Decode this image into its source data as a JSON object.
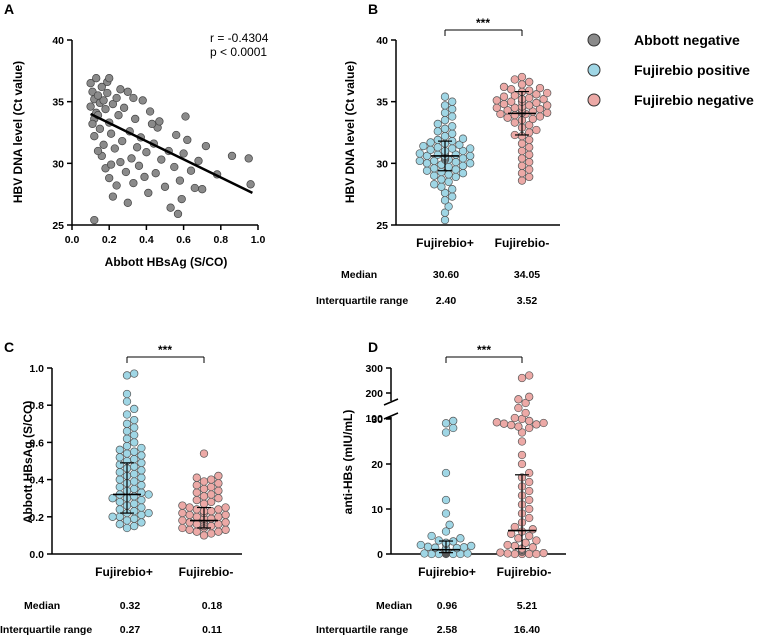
{
  "legend": {
    "items": [
      {
        "label": "Abbott negative",
        "color": "#8a8a8a"
      },
      {
        "label": "Fujirebio positive",
        "color": "#9fd6e5"
      },
      {
        "label": "Fujirebio negative",
        "color": "#eca9a6"
      }
    ]
  },
  "chart_data": [
    {
      "panel": "A",
      "type": "scatter",
      "xlabel": "Abbott HBsAg (S/CO)",
      "ylabel": "HBV DNA level (Ct value)",
      "xlim": [
        0.0,
        1.0
      ],
      "ylim": [
        25,
        40
      ],
      "xticks": [
        "0.0",
        "0.2",
        "0.4",
        "0.6",
        "0.8",
        "1.0"
      ],
      "yticks": [
        "25",
        "30",
        "35",
        "40"
      ],
      "annotations": [
        "r = -0.4304",
        "p < 0.0001"
      ],
      "regression_line": {
        "x": [
          0.1,
          0.97
        ],
        "y": [
          34.0,
          27.6
        ]
      },
      "points": [
        [
          0.1,
          36.5
        ],
        [
          0.11,
          35.8
        ],
        [
          0.12,
          35.2
        ],
        [
          0.1,
          34.6
        ],
        [
          0.13,
          34.1
        ],
        [
          0.12,
          33.6
        ],
        [
          0.14,
          35.5
        ],
        [
          0.15,
          34.9
        ],
        [
          0.11,
          33.2
        ],
        [
          0.13,
          36.9
        ],
        [
          0.16,
          36.2
        ],
        [
          0.14,
          33.9
        ],
        [
          0.17,
          35.1
        ],
        [
          0.15,
          32.8
        ],
        [
          0.18,
          34.4
        ],
        [
          0.12,
          32.2
        ],
        [
          0.19,
          35.7
        ],
        [
          0.2,
          33.3
        ],
        [
          0.17,
          31.5
        ],
        [
          0.22,
          34.8
        ],
        [
          0.21,
          32.4
        ],
        [
          0.16,
          30.6
        ],
        [
          0.24,
          35.3
        ],
        [
          0.23,
          31.2
        ],
        [
          0.18,
          29.6
        ],
        [
          0.25,
          33.9
        ],
        [
          0.26,
          30.1
        ],
        [
          0.2,
          28.8
        ],
        [
          0.28,
          34.5
        ],
        [
          0.27,
          31.8
        ],
        [
          0.29,
          29.3
        ],
        [
          0.3,
          35.8
        ],
        [
          0.31,
          32.6
        ],
        [
          0.32,
          30.4
        ],
        [
          0.22,
          27.3
        ],
        [
          0.34,
          33.6
        ],
        [
          0.33,
          28.4
        ],
        [
          0.35,
          31.3
        ],
        [
          0.36,
          29.8
        ],
        [
          0.38,
          35.1
        ],
        [
          0.37,
          32.1
        ],
        [
          0.4,
          30.9
        ],
        [
          0.39,
          28.9
        ],
        [
          0.42,
          34.2
        ],
        [
          0.41,
          27.6
        ],
        [
          0.44,
          31.6
        ],
        [
          0.45,
          29.2
        ],
        [
          0.46,
          32.9
        ],
        [
          0.48,
          30.3
        ],
        [
          0.5,
          28.1
        ],
        [
          0.47,
          33.4
        ],
        [
          0.52,
          31.0
        ],
        [
          0.53,
          26.4
        ],
        [
          0.55,
          29.7
        ],
        [
          0.56,
          32.3
        ],
        [
          0.58,
          28.6
        ],
        [
          0.6,
          30.8
        ],
        [
          0.59,
          27.1
        ],
        [
          0.62,
          31.9
        ],
        [
          0.64,
          29.4
        ],
        [
          0.66,
          28.0
        ],
        [
          0.68,
          30.2
        ],
        [
          0.7,
          27.9
        ],
        [
          0.72,
          31.4
        ],
        [
          0.78,
          29.1
        ],
        [
          0.86,
          30.6
        ],
        [
          0.95,
          30.4
        ],
        [
          0.96,
          28.3
        ],
        [
          0.12,
          25.4
        ],
        [
          0.3,
          26.8
        ],
        [
          0.57,
          25.9
        ],
        [
          0.19,
          36.6
        ],
        [
          0.26,
          36.0
        ],
        [
          0.33,
          35.3
        ],
        [
          0.14,
          31.0
        ],
        [
          0.21,
          29.9
        ],
        [
          0.24,
          28.2
        ],
        [
          0.43,
          33.2
        ],
        [
          0.61,
          33.8
        ],
        [
          0.2,
          36.9
        ]
      ]
    },
    {
      "panel": "B",
      "type": "scatter",
      "ylabel": "HBV DNA level (Ct value)",
      "categories": [
        "Fujirebio+",
        "Fujirebio-"
      ],
      "ylim": [
        25,
        40
      ],
      "yticks": [
        "25",
        "30",
        "35",
        "40"
      ],
      "significance": "***",
      "median": [
        30.6,
        34.05
      ],
      "iqr_bounds": [
        [
          29.4,
          31.8
        ],
        [
          32.3,
          35.82
        ]
      ],
      "stats": {
        "median_label": "Median",
        "iqr_label": "Interquartile range",
        "median_values": [
          "30.60",
          "34.05"
        ],
        "iqr_values": [
          "2.40",
          "3.52"
        ]
      },
      "series": [
        {
          "name": "Fujirebio+",
          "values": [
            25.4,
            26.0,
            26.5,
            27.0,
            27.3,
            27.6,
            27.9,
            28.1,
            28.3,
            28.5,
            28.7,
            28.9,
            29.0,
            29.1,
            29.2,
            29.3,
            29.4,
            29.5,
            29.6,
            29.7,
            29.8,
            29.9,
            30.0,
            30.0,
            30.1,
            30.2,
            30.2,
            30.3,
            30.3,
            30.4,
            30.4,
            30.5,
            30.5,
            30.6,
            30.6,
            30.6,
            30.7,
            30.7,
            30.8,
            30.8,
            30.9,
            30.9,
            31.0,
            31.0,
            31.1,
            31.2,
            31.2,
            31.3,
            31.4,
            31.5,
            31.6,
            31.7,
            31.8,
            31.9,
            32.0,
            32.2,
            32.4,
            32.6,
            32.8,
            33.0,
            33.2,
            33.5,
            33.8,
            34.1,
            34.4,
            34.7,
            35.0,
            35.4
          ]
        },
        {
          "name": "Fujirebio-",
          "values": [
            28.6,
            28.9,
            29.2,
            29.5,
            29.8,
            30.1,
            30.4,
            30.7,
            31.0,
            31.3,
            31.6,
            31.9,
            32.2,
            32.3,
            32.5,
            32.7,
            32.9,
            33.1,
            33.3,
            33.5,
            33.6,
            33.7,
            33.8,
            33.9,
            34.0,
            34.0,
            34.1,
            34.1,
            34.2,
            34.2,
            34.3,
            34.3,
            34.4,
            34.4,
            34.5,
            34.5,
            34.6,
            34.7,
            34.7,
            34.8,
            34.9,
            35.0,
            35.0,
            35.1,
            35.2,
            35.2,
            35.3,
            35.4,
            35.5,
            35.6,
            35.7,
            35.8,
            35.9,
            36.0,
            36.1,
            36.2,
            36.4,
            36.6,
            36.8,
            37.0
          ]
        }
      ]
    },
    {
      "panel": "C",
      "type": "scatter",
      "ylabel": "Abbott HBsAg (S/CO)",
      "categories": [
        "Fujirebio+",
        "Fujirebio-"
      ],
      "ylim": [
        0.0,
        1.0
      ],
      "yticks": [
        "0.0",
        "0.2",
        "0.4",
        "0.6",
        "0.8",
        "1.0"
      ],
      "significance": "***",
      "median": [
        0.32,
        0.18
      ],
      "iqr_bounds": [
        [
          0.22,
          0.49
        ],
        [
          0.14,
          0.25
        ]
      ],
      "stats": {
        "median_label": "Median",
        "iqr_label": "Interquartile range",
        "median_values": [
          "0.32",
          "0.18"
        ],
        "iqr_values": [
          "0.27",
          "0.11"
        ]
      },
      "series": [
        {
          "name": "Fujirebio+",
          "values": [
            0.14,
            0.15,
            0.16,
            0.17,
            0.18,
            0.19,
            0.2,
            0.2,
            0.21,
            0.22,
            0.22,
            0.23,
            0.24,
            0.25,
            0.26,
            0.27,
            0.28,
            0.29,
            0.3,
            0.3,
            0.31,
            0.32,
            0.32,
            0.33,
            0.34,
            0.35,
            0.36,
            0.37,
            0.38,
            0.39,
            0.4,
            0.41,
            0.42,
            0.43,
            0.44,
            0.45,
            0.46,
            0.47,
            0.48,
            0.49,
            0.5,
            0.51,
            0.52,
            0.53,
            0.54,
            0.55,
            0.56,
            0.57,
            0.58,
            0.6,
            0.62,
            0.64,
            0.66,
            0.68,
            0.7,
            0.72,
            0.75,
            0.78,
            0.82,
            0.86,
            0.96,
            0.97
          ]
        },
        {
          "name": "Fujirebio-",
          "values": [
            0.1,
            0.11,
            0.12,
            0.12,
            0.13,
            0.13,
            0.14,
            0.14,
            0.14,
            0.15,
            0.15,
            0.15,
            0.16,
            0.16,
            0.16,
            0.17,
            0.17,
            0.17,
            0.18,
            0.18,
            0.18,
            0.19,
            0.19,
            0.19,
            0.2,
            0.2,
            0.21,
            0.21,
            0.22,
            0.22,
            0.23,
            0.23,
            0.24,
            0.24,
            0.25,
            0.25,
            0.26,
            0.27,
            0.28,
            0.29,
            0.3,
            0.31,
            0.32,
            0.33,
            0.34,
            0.35,
            0.36,
            0.37,
            0.38,
            0.39,
            0.4,
            0.41,
            0.42,
            0.54
          ]
        }
      ]
    },
    {
      "panel": "D",
      "type": "scatter",
      "ylabel": "anti-HBs (mIU/mL)",
      "categories": [
        "Fujirebio+",
        "Fujirebio-"
      ],
      "ylim": [
        0,
        300
      ],
      "axis_break": "30 to 100",
      "yticks": [
        "0",
        "10",
        "20",
        "30",
        "100",
        "200",
        "300"
      ],
      "significance": "***",
      "median": [
        0.96,
        5.21
      ],
      "iqr_bounds": [
        [
          0.3,
          2.88
        ],
        [
          1.2,
          17.6
        ]
      ],
      "stats": {
        "median_label": "Median",
        "iqr_label": "Interquartile range",
        "median_values": [
          "0.96",
          "5.21"
        ],
        "iqr_values": [
          "2.58",
          "16.40"
        ]
      },
      "series": [
        {
          "name": "Fujirebio+",
          "values": [
            0,
            0,
            0,
            0,
            0,
            0.1,
            0.1,
            0.1,
            0.2,
            0.2,
            0.2,
            0.3,
            0.3,
            0.3,
            0.4,
            0.4,
            0.5,
            0.5,
            0.6,
            0.6,
            0.7,
            0.7,
            0.8,
            0.8,
            0.9,
            0.9,
            1.0,
            1.0,
            1.1,
            1.2,
            1.3,
            1.4,
            1.5,
            1.6,
            1.8,
            2.0,
            2.2,
            2.5,
            2.8,
            3.0,
            3.5,
            4.0,
            5.0,
            6.5,
            9.0,
            12.0,
            18.0,
            27.0,
            28.0,
            63,
            80
          ]
        },
        {
          "name": "Fujirebio-",
          "values": [
            0,
            0,
            0,
            0,
            0.1,
            0.2,
            0.3,
            0.5,
            0.7,
            0.9,
            1.0,
            1.2,
            1.5,
            1.8,
            2.0,
            2.5,
            3.0,
            3.5,
            4.0,
            4.5,
            5.0,
            5.5,
            6.0,
            7.0,
            8.0,
            9.0,
            10.0,
            11.0,
            12.0,
            13.0,
            14.0,
            15.0,
            16.0,
            17.0,
            18.0,
            20.0,
            22.0,
            25.0,
            27.0,
            28.0,
            30,
            40,
            50,
            55,
            60,
            65,
            70,
            80,
            100,
            120,
            140,
            160,
            175,
            185,
            260,
            270
          ]
        }
      ]
    }
  ]
}
